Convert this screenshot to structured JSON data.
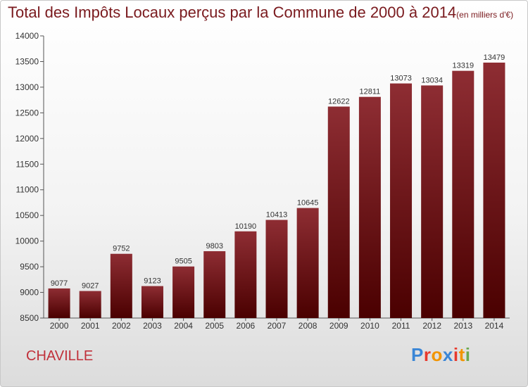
{
  "header": {
    "title": "Total des Impôts Locaux perçus par la Commune de 2000 à 2014",
    "unit": "(en milliers d'€)"
  },
  "footer": {
    "commune": "CHAVILLE",
    "logo_letters": [
      "P",
      "r",
      "o",
      "x",
      "i",
      "t",
      "i"
    ],
    "logo_colors": [
      "#3a86d6",
      "#e8392c",
      "#f29400",
      "#3a86d6",
      "#e8392c",
      "#f29400",
      "#6aa84f"
    ]
  },
  "colors": {
    "bar_top": "#8e2d33",
    "bar_bottom": "#4a0000",
    "title": "#7a1a1e",
    "commune": "#c0303a"
  },
  "chart_data": {
    "type": "bar",
    "title": "Total des Impôts Locaux perçus par la Commune de 2000 à 2014",
    "xlabel": "",
    "ylabel": "",
    "ylim": [
      8500,
      14000
    ],
    "yticks": [
      8500,
      9000,
      9500,
      10000,
      10500,
      11000,
      11500,
      12000,
      12500,
      13000,
      13500,
      14000
    ],
    "categories": [
      "2000",
      "2001",
      "2002",
      "2003",
      "2004",
      "2005",
      "2006",
      "2007",
      "2008",
      "2009",
      "2010",
      "2011",
      "2012",
      "2013",
      "2014"
    ],
    "values": [
      9077,
      9027,
      9752,
      9123,
      9505,
      9803,
      10190,
      10413,
      10645,
      12622,
      12811,
      13073,
      13034,
      13319,
      13479
    ],
    "grid": false,
    "legend": "none"
  }
}
